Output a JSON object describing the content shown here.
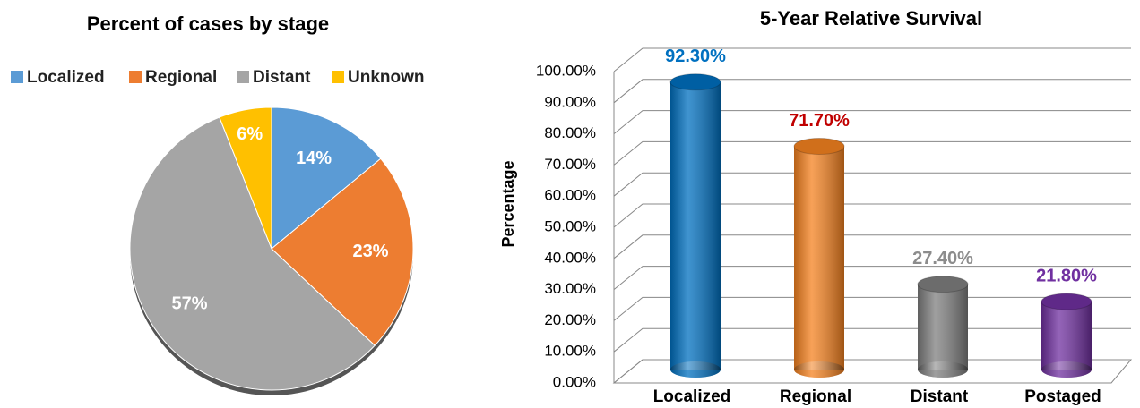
{
  "chart_data": [
    {
      "type": "pie",
      "title": "Percent of cases by stage",
      "categories": [
        "Localized",
        "Regional",
        "Distant",
        "Unknown"
      ],
      "values": [
        14,
        23,
        57,
        6
      ],
      "value_labels": [
        "14%",
        "23%",
        "57%",
        "6%"
      ],
      "colors": [
        "#5b9bd5",
        "#ed7d31",
        "#a5a5a5",
        "#ffc000"
      ],
      "legend": "top"
    },
    {
      "type": "bar",
      "title": "5-Year Relative Survival",
      "ylabel": "Percentage",
      "categories": [
        "Localized",
        "Regional",
        "Distant",
        "Postaged"
      ],
      "values": [
        92.3,
        71.7,
        27.4,
        21.8
      ],
      "value_labels": [
        "92.30%",
        "71.70%",
        "27.40%",
        "21.80%"
      ],
      "colors": [
        "#0070c0",
        "#f58220",
        "#7f7f7f",
        "#7030a0"
      ],
      "label_colors": [
        "#0070c0",
        "#c00000",
        "#8c8c8c",
        "#7030a0"
      ],
      "ylim": [
        0,
        100
      ],
      "yticks": [
        {
          "value": 0,
          "label": "0.00%"
        },
        {
          "value": 10,
          "label": "10.00%"
        },
        {
          "value": 20,
          "label": "20.00%"
        },
        {
          "value": 30,
          "label": "30.00%"
        },
        {
          "value": 40,
          "label": "40.00%"
        },
        {
          "value": 50,
          "label": "50.00%"
        },
        {
          "value": 60,
          "label": "60.00%"
        },
        {
          "value": 70,
          "label": "70.00%"
        },
        {
          "value": 80,
          "label": "80.00%"
        },
        {
          "value": 90,
          "label": "90.00%"
        },
        {
          "value": 100,
          "label": "100.00%"
        }
      ],
      "grid": true
    }
  ]
}
